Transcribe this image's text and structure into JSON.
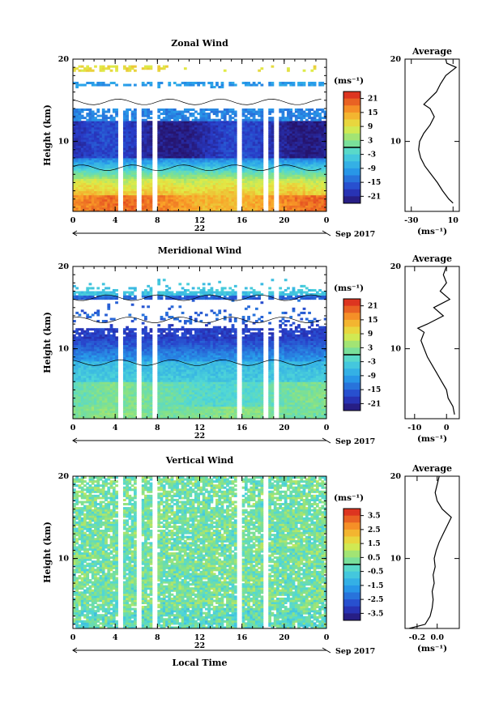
{
  "page": {
    "xlabel": "Local Time"
  },
  "chart_data": [
    {
      "type": "heatmap",
      "name": "zonal",
      "title": "Zonal Wind",
      "ylabel": "Height (km)",
      "xlim": [
        0,
        24
      ],
      "ylim": [
        1.5,
        20
      ],
      "xticks": [
        "0",
        "4",
        "8",
        "12",
        "16",
        "20",
        "0"
      ],
      "yticks": [
        "10",
        "20"
      ],
      "day_label": "22",
      "date_label": "Sep 2017",
      "units": "(ms⁻¹)",
      "colorbar": {
        "ticks": [
          "21",
          "15",
          "9",
          "3",
          "-3",
          "-9",
          "-15",
          "-21"
        ],
        "range": [
          -24,
          24
        ]
      },
      "data_gaps_hours": [
        4.1,
        5.8,
        7.4,
        15.5,
        18.0,
        18.8
      ],
      "profile": {
        "title": "Average",
        "xlabel": "(ms⁻¹)",
        "xlim": [
          -36,
          16
        ],
        "xticks": [
          "-30",
          "10"
        ],
        "yticks": [
          "10",
          "20"
        ],
        "height_km": [
          2.5,
          3,
          4,
          5,
          6,
          7,
          8,
          9,
          10,
          11,
          12,
          13,
          14,
          14.5,
          15,
          16,
          17,
          18,
          18.5,
          19,
          19.5,
          20
        ],
        "value": [
          10,
          6,
          0,
          -5,
          -11,
          -17,
          -21,
          -23,
          -22,
          -18,
          -12,
          -8,
          -12,
          -18,
          -14,
          -6,
          -2,
          3,
          8,
          13,
          4,
          3
        ]
      }
    },
    {
      "type": "heatmap",
      "name": "meridional",
      "title": "Meridional Wind",
      "ylabel": "Height (km)",
      "xlim": [
        0,
        24
      ],
      "ylim": [
        1.5,
        20
      ],
      "xticks": [
        "0",
        "4",
        "8",
        "12",
        "16",
        "20",
        "0"
      ],
      "yticks": [
        "10",
        "20"
      ],
      "day_label": "22",
      "date_label": "Sep 2017",
      "units": "(ms⁻¹)",
      "colorbar": {
        "ticks": [
          "21",
          "15",
          "9",
          "3",
          "-3",
          "-9",
          "-15",
          "-21"
        ],
        "range": [
          -24,
          24
        ]
      },
      "data_gaps_hours": [
        4.1,
        5.8,
        7.4,
        15.5,
        18.0,
        18.8
      ],
      "profile": {
        "title": "Average",
        "xlabel": "(ms⁻¹)",
        "xlim": [
          -13,
          4
        ],
        "xticks": [
          "-10",
          "0"
        ],
        "yticks": [
          "10",
          "20"
        ],
        "height_km": [
          2,
          3,
          4,
          5,
          6,
          7,
          8,
          9,
          10,
          11,
          12,
          12.5,
          13,
          14,
          15,
          16,
          17,
          18,
          19,
          20
        ],
        "value": [
          2.5,
          2.0,
          0.5,
          0,
          -1.5,
          -3,
          -4.5,
          -6,
          -7,
          -8,
          -7,
          -9,
          -6,
          -1,
          -4,
          1,
          -2,
          0,
          -1,
          0
        ]
      }
    },
    {
      "type": "heatmap",
      "name": "vertical",
      "title": "Vertical Wind",
      "ylabel": "Height (km)",
      "xlim": [
        0,
        24
      ],
      "ylim": [
        1.5,
        20
      ],
      "xticks": [
        "0",
        "4",
        "8",
        "12",
        "16",
        "20",
        "0"
      ],
      "yticks": [
        "10",
        "20"
      ],
      "day_label": "22",
      "date_label": "Sep 2017",
      "units": "(ms⁻¹)",
      "colorbar": {
        "ticks": [
          "3.5",
          "2.5",
          "1.5",
          "0.5",
          "-0.5",
          "-1.5",
          "-2.5",
          "-3.5"
        ],
        "range": [
          -4,
          4
        ]
      },
      "data_gaps_hours": [
        4.1,
        5.8,
        7.4,
        15.5,
        18.0
      ],
      "profile": {
        "title": "Average",
        "xlabel": "(ms⁻¹)",
        "xlim": [
          -0.32,
          0.22
        ],
        "xticks": [
          "-0.2",
          "0.0"
        ],
        "yticks": [
          "10",
          "20"
        ],
        "height_km": [
          1.5,
          2,
          3,
          4,
          5,
          6,
          7,
          8,
          9,
          10,
          11,
          12,
          13,
          14,
          15,
          16,
          17,
          18,
          19,
          20
        ],
        "value": [
          -0.28,
          -0.12,
          -0.07,
          -0.05,
          -0.04,
          -0.05,
          -0.03,
          -0.04,
          -0.02,
          -0.03,
          -0.01,
          0.02,
          0.06,
          0.1,
          0.14,
          0.05,
          0.0,
          -0.02,
          0.0,
          0.02
        ]
      }
    }
  ]
}
